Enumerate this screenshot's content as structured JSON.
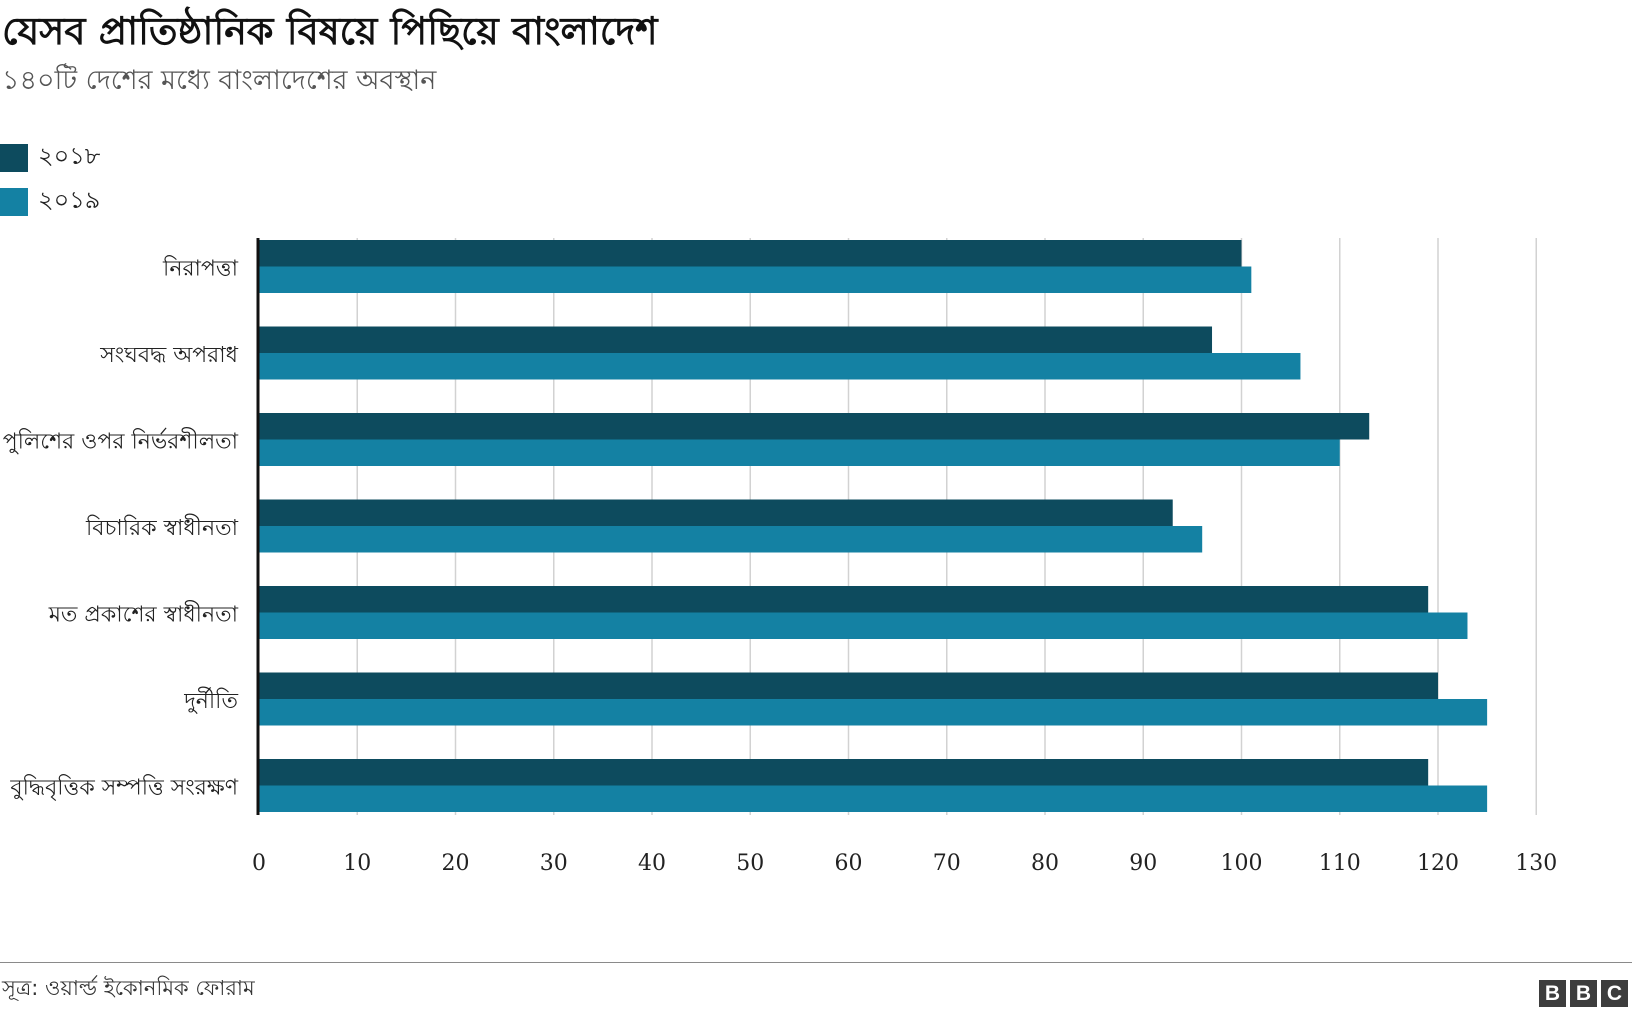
{
  "header": {
    "title": "যেসব প্রাতিষ্ঠানিক বিষয়ে পিছিয়ে বাংলাদেশ",
    "subtitle": "১৪০টি দেশের মধ্যে বাংলাদেশের অবস্থান"
  },
  "legend": {
    "items": [
      {
        "label": "২০১৮",
        "color": "#0d4b5e"
      },
      {
        "label": "২০১৯",
        "color": "#1481a3"
      }
    ]
  },
  "footer": {
    "source": "সূত্র: ওয়ার্ল্ড ইকোনমিক ফোরাম",
    "brand_letters": [
      "B",
      "B",
      "C"
    ]
  },
  "chart_data": {
    "type": "bar",
    "orientation": "horizontal",
    "categories": [
      "নিরাপত্তা",
      "সংঘবদ্ধ অপরাধ",
      "পুলিশের ওপর নির্ভরশীলতা",
      "বিচারিক স্বাধীনতা",
      "মত প্রকাশের স্বাধীনতা",
      "দুর্নীতি",
      "বুদ্ধিবৃত্তিক সম্পত্তি সংরক্ষণ"
    ],
    "series": [
      {
        "name": "২০১৮",
        "color": "#0d4b5e",
        "values": [
          100,
          97,
          113,
          93,
          119,
          120,
          119
        ]
      },
      {
        "name": "২০১৯",
        "color": "#1481a3",
        "values": [
          101,
          106,
          110,
          96,
          123,
          125,
          125
        ]
      }
    ],
    "xlim": [
      0,
      130
    ],
    "xticks": [
      0,
      10,
      20,
      30,
      40,
      50,
      60,
      70,
      80,
      90,
      100,
      110,
      120,
      130
    ],
    "grid": true,
    "legend_position": "top-left"
  }
}
